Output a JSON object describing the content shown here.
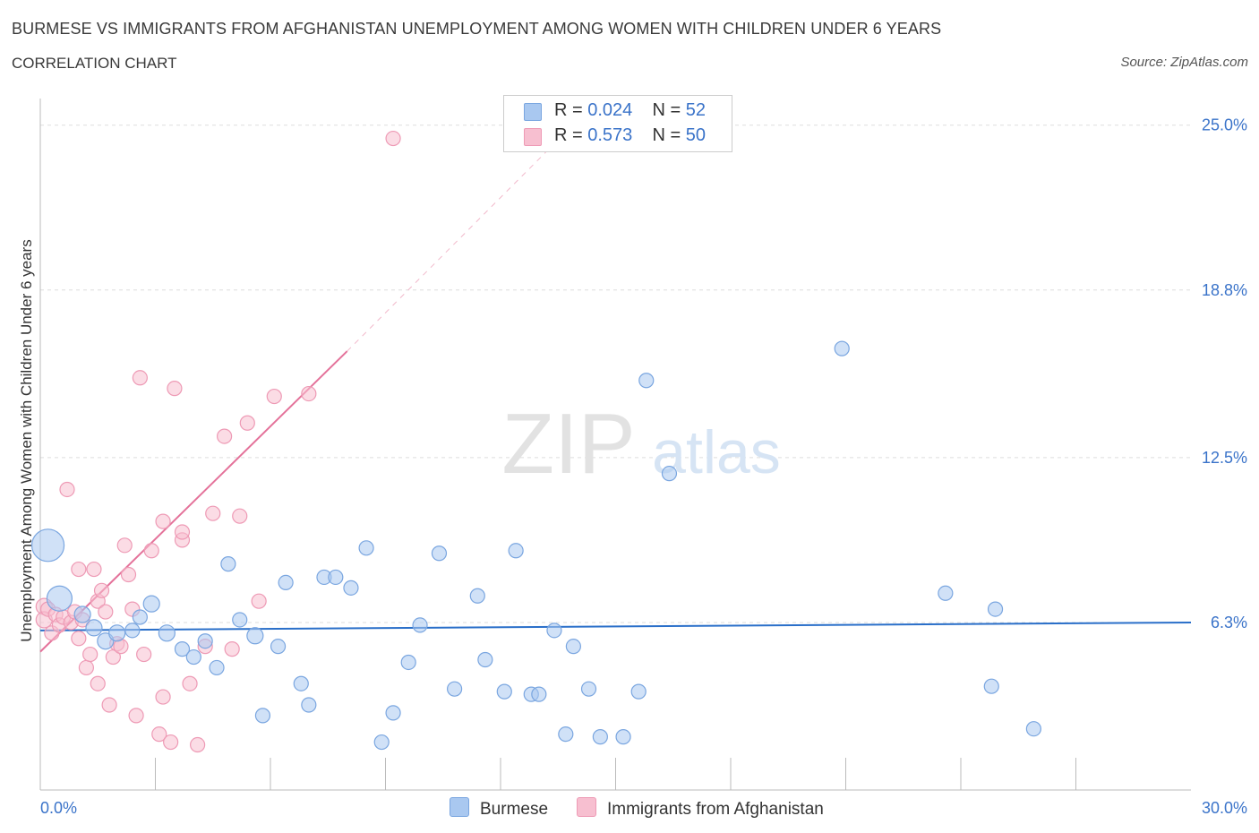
{
  "title": "BURMESE VS IMMIGRANTS FROM AFGHANISTAN UNEMPLOYMENT AMONG WOMEN WITH CHILDREN UNDER 6 YEARS",
  "subtitle": "CORRELATION CHART",
  "source": "Source: ZipAtlas.com",
  "watermark": {
    "zip": "ZIP",
    "atlas": "atlas"
  },
  "legend": {
    "rows": [
      {
        "r_label": "R = ",
        "r_value": "0.024",
        "n_label": "N = ",
        "n_value": "52",
        "color": "#a9c8f0",
        "border": "#7aa6e0"
      },
      {
        "r_label": "R = ",
        "r_value": "0.573",
        "n_label": "N = ",
        "n_value": "50",
        "color": "#f7bfd0",
        "border": "#ee9ab5"
      }
    ]
  },
  "bottom_legend": [
    {
      "label": "Burmese",
      "color": "#a9c8f0",
      "border": "#7aa6e0"
    },
    {
      "label": "Immigrants from Afghanistan",
      "color": "#f7bfd0",
      "border": "#ee9ab5"
    }
  ],
  "chart_data": {
    "type": "scatter",
    "ylabel": "Unemployment Among Women with Children Under 6 years",
    "xlim": [
      0,
      30
    ],
    "ylim": [
      0,
      26
    ],
    "x_tick_labels": [
      {
        "value": 0,
        "label": "0.0%"
      },
      {
        "value": 30,
        "label": "30.0%"
      }
    ],
    "y_tick_labels": [
      {
        "value": 6.3,
        "label": "6.3%"
      },
      {
        "value": 12.5,
        "label": "12.5%"
      },
      {
        "value": 18.8,
        "label": "18.8%"
      },
      {
        "value": 25.0,
        "label": "25.0%"
      }
    ],
    "grid": {
      "horizontal": true,
      "vertical": false
    },
    "series": [
      {
        "name": "Burmese",
        "color": "#7aa6e0",
        "fill": "#a9c8f0",
        "trend": {
          "x": [
            0,
            30
          ],
          "y": [
            6.0,
            6.3
          ],
          "style": "solid",
          "color": "#2a6fc9"
        },
        "points": [
          [
            0.2,
            9.2,
            18
          ],
          [
            0.5,
            7.2,
            14
          ],
          [
            1.1,
            6.6,
            9
          ],
          [
            1.4,
            6.1,
            9
          ],
          [
            1.7,
            5.6,
            9
          ],
          [
            2.0,
            5.9,
            9
          ],
          [
            2.4,
            6.0,
            8
          ],
          [
            2.6,
            6.5,
            8
          ],
          [
            2.9,
            7.0,
            9
          ],
          [
            3.3,
            5.9,
            9
          ],
          [
            3.7,
            5.3,
            8
          ],
          [
            4.0,
            5.0,
            8
          ],
          [
            4.3,
            5.6,
            8
          ],
          [
            4.6,
            4.6,
            8
          ],
          [
            4.9,
            8.5,
            8
          ],
          [
            5.2,
            6.4,
            8
          ],
          [
            5.6,
            5.8,
            9
          ],
          [
            5.8,
            2.8,
            8
          ],
          [
            6.2,
            5.4,
            8
          ],
          [
            6.4,
            7.8,
            8
          ],
          [
            6.8,
            4.0,
            8
          ],
          [
            7.0,
            3.2,
            8
          ],
          [
            7.4,
            8.0,
            8
          ],
          [
            7.7,
            8.0,
            8
          ],
          [
            8.1,
            7.6,
            8
          ],
          [
            8.5,
            9.1,
            8
          ],
          [
            8.9,
            1.8,
            8
          ],
          [
            9.2,
            2.9,
            8
          ],
          [
            9.6,
            4.8,
            8
          ],
          [
            9.9,
            6.2,
            8
          ],
          [
            10.4,
            8.9,
            8
          ],
          [
            10.8,
            3.8,
            8
          ],
          [
            11.4,
            7.3,
            8
          ],
          [
            11.6,
            4.9,
            8
          ],
          [
            12.1,
            3.7,
            8
          ],
          [
            12.4,
            9.0,
            8
          ],
          [
            12.8,
            3.6,
            8
          ],
          [
            13.0,
            3.6,
            8
          ],
          [
            13.4,
            6.0,
            8
          ],
          [
            13.7,
            2.1,
            8
          ],
          [
            13.9,
            5.4,
            8
          ],
          [
            14.3,
            3.8,
            8
          ],
          [
            14.6,
            2.0,
            8
          ],
          [
            15.2,
            2.0,
            8
          ],
          [
            15.6,
            3.7,
            8
          ],
          [
            15.8,
            15.4,
            8
          ],
          [
            16.4,
            11.9,
            8
          ],
          [
            20.9,
            16.6,
            8
          ],
          [
            23.6,
            7.4,
            8
          ],
          [
            24.8,
            3.9,
            8
          ],
          [
            24.9,
            6.8,
            8
          ],
          [
            25.9,
            2.3,
            8
          ]
        ]
      },
      {
        "name": "Immigrants from Afghanistan",
        "color": "#ee9ab5",
        "fill": "#f7bfd0",
        "trend": {
          "x": [
            0,
            8.0
          ],
          "y": [
            5.2,
            16.5
          ],
          "style": "solid",
          "color": "#e4729a",
          "extension": {
            "x": [
              8.0,
              13.4
            ],
            "y": [
              16.5,
              24.3
            ],
            "style": "dashed"
          }
        },
        "points": [
          [
            0.1,
            6.9,
            9
          ],
          [
            0.1,
            6.4,
            9
          ],
          [
            0.2,
            6.8,
            8
          ],
          [
            0.3,
            5.9,
            8
          ],
          [
            0.4,
            6.6,
            8
          ],
          [
            0.5,
            6.2,
            8
          ],
          [
            0.6,
            6.5,
            8
          ],
          [
            0.7,
            11.3,
            8
          ],
          [
            0.8,
            6.3,
            8
          ],
          [
            0.9,
            6.7,
            8
          ],
          [
            1.0,
            5.7,
            8
          ],
          [
            1.0,
            8.3,
            8
          ],
          [
            1.1,
            6.4,
            8
          ],
          [
            1.2,
            4.6,
            8
          ],
          [
            1.3,
            5.1,
            8
          ],
          [
            1.4,
            8.3,
            8
          ],
          [
            1.5,
            4.0,
            8
          ],
          [
            1.5,
            7.1,
            8
          ],
          [
            1.6,
            7.5,
            8
          ],
          [
            1.7,
            6.7,
            8
          ],
          [
            1.8,
            3.2,
            8
          ],
          [
            1.9,
            5.0,
            8
          ],
          [
            2.0,
            5.5,
            8
          ],
          [
            2.1,
            5.4,
            8
          ],
          [
            2.2,
            9.2,
            8
          ],
          [
            2.3,
            8.1,
            8
          ],
          [
            2.4,
            6.8,
            8
          ],
          [
            2.5,
            2.8,
            8
          ],
          [
            2.6,
            15.5,
            8
          ],
          [
            2.7,
            5.1,
            8
          ],
          [
            2.9,
            9.0,
            8
          ],
          [
            3.1,
            2.1,
            8
          ],
          [
            3.2,
            3.5,
            8
          ],
          [
            3.2,
            10.1,
            8
          ],
          [
            3.4,
            1.8,
            8
          ],
          [
            3.5,
            15.1,
            8
          ],
          [
            3.7,
            9.4,
            8
          ],
          [
            3.7,
            9.7,
            8
          ],
          [
            3.9,
            4.0,
            8
          ],
          [
            4.1,
            1.7,
            8
          ],
          [
            4.3,
            5.4,
            8
          ],
          [
            4.5,
            10.4,
            8
          ],
          [
            4.8,
            13.3,
            8
          ],
          [
            5.0,
            5.3,
            8
          ],
          [
            5.2,
            10.3,
            8
          ],
          [
            5.4,
            13.8,
            8
          ],
          [
            5.7,
            7.1,
            8
          ],
          [
            6.1,
            14.8,
            8
          ],
          [
            7.0,
            14.9,
            8
          ],
          [
            9.2,
            24.5,
            8
          ]
        ]
      }
    ]
  }
}
